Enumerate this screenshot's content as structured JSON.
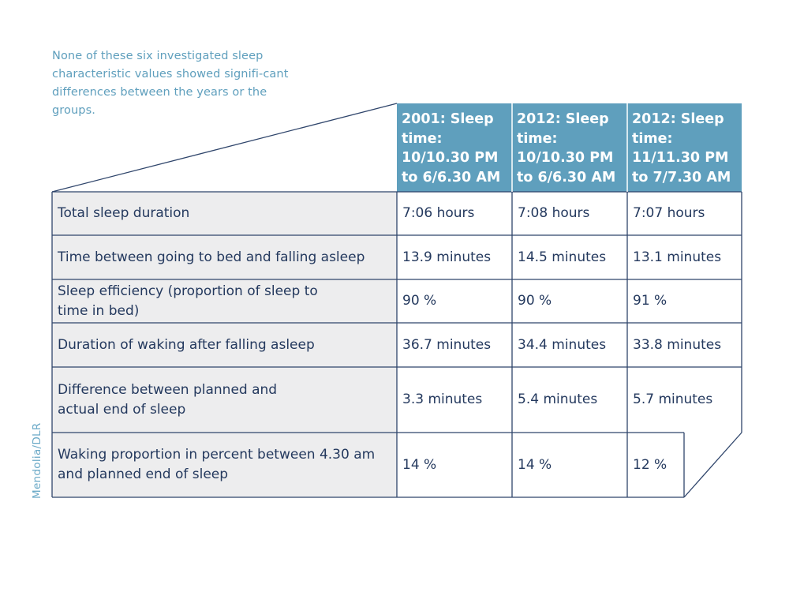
{
  "intro_text": "None of these six investigated sleep characteristic values showed signifi-cant differences between the years or the groups.",
  "credit": "Mendolia/DLR",
  "colors": {
    "header_bg": "#5f9fbd",
    "label_bg": "#ededee",
    "grid_line": "#2f456b",
    "text": "#24395e",
    "accent_text": "#5f9fbd"
  },
  "table": {
    "columns": [
      "2001: Sleep time: 10/10.30 PM to 6/6.30 AM",
      "2012: Sleep time: 10/10.30 PM to 6/6.30 AM",
      "2012: Sleep time: 11/11.30 PM to 7/7.30 AM"
    ],
    "rows": [
      {
        "label": "Total sleep duration",
        "values": [
          "7:06 hours",
          "7:08 hours",
          "7:07 hours"
        ]
      },
      {
        "label": "Time between going to bed and falling asleep",
        "values": [
          "13.9 minutes",
          "14.5 minutes",
          "13.1 minutes"
        ]
      },
      {
        "label": "Sleep efficiency (proportion of sleep to time in bed)",
        "values": [
          "90 %",
          "90 %",
          "91 %"
        ]
      },
      {
        "label": "Duration of waking after falling asleep",
        "values": [
          "36.7 minutes",
          "34.4 minutes",
          "33.8 minutes"
        ]
      },
      {
        "label": "Difference between planned and actual end of sleep",
        "values": [
          "3.3 minutes",
          "5.4 minutes",
          "5.7 minutes"
        ]
      },
      {
        "label": "Waking proportion in percent between 4.30 am and planned end of sleep",
        "values": [
          "14 %",
          "14 %",
          "12 %"
        ]
      }
    ]
  }
}
